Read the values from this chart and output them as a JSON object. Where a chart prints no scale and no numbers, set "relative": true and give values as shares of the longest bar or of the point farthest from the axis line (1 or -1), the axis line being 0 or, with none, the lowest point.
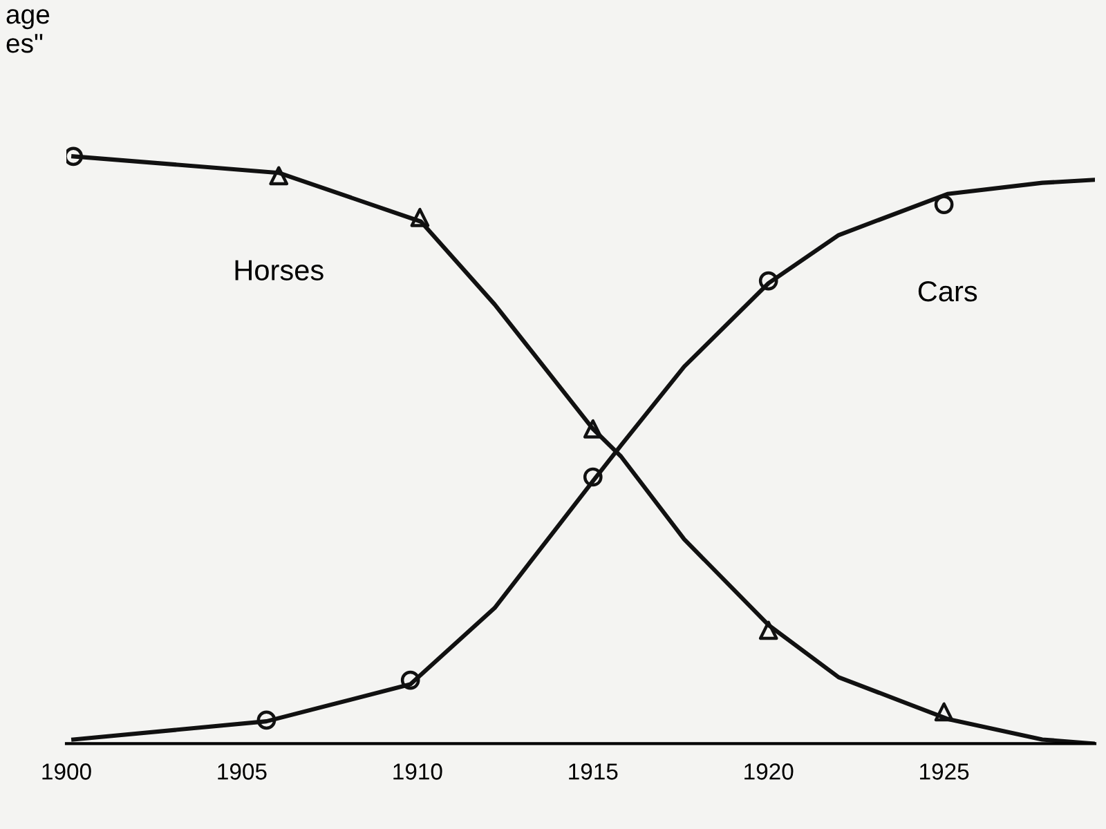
{
  "chart_data": {
    "type": "line",
    "relative": true,
    "annotations": [
      "age\nes\""
    ],
    "xlim": [
      1900,
      1929.3
    ],
    "xticks": [
      1900,
      1905,
      1910,
      1915,
      1920,
      1925
    ],
    "grid": false,
    "legend": false,
    "tick_labels": "x",
    "series": [
      {
        "name": "Horses",
        "color": "#111111",
        "marker": "none",
        "x": [
          1900.2,
          1906.05,
          1910.1,
          1912.2,
          1915,
          1915.8,
          1917.6,
          1920,
          1922,
          1925.1,
          1927.8,
          1929.25
        ],
        "values": [
          1.0,
          0.972,
          0.889,
          0.748,
          0.536,
          0.489,
          0.348,
          0.202,
          0.113,
          0.042,
          0.007,
          0.0
        ]
      },
      {
        "name": "Cars",
        "color": "#111111",
        "marker": "none",
        "x": [
          1900.2,
          1905.7,
          1909.8,
          1912.2,
          1915,
          1915.8,
          1917.6,
          1920,
          1922,
          1925.1,
          1927.8,
          1929.25
        ],
        "values": [
          0.007,
          0.038,
          0.101,
          0.231,
          0.447,
          0.508,
          0.642,
          0.784,
          0.866,
          0.936,
          0.955,
          0.96
        ]
      },
      {
        "type": "scatter",
        "color": "#111111",
        "marker": "circle",
        "x": [
          1900.2
        ],
        "values": [
          1.0
        ]
      },
      {
        "type": "scatter",
        "color": "#111111",
        "marker": "triangle",
        "x": [
          1906.05,
          1910.07,
          1915,
          1920,
          1925
        ],
        "values": [
          0.967,
          0.896,
          0.536,
          0.193,
          0.054
        ]
      },
      {
        "type": "scatter",
        "color": "#111111",
        "marker": "circle",
        "x": [
          1905.7,
          1909.8,
          1915,
          1920,
          1925
        ],
        "values": [
          0.04,
          0.108,
          0.454,
          0.788,
          0.918
        ]
      }
    ]
  }
}
